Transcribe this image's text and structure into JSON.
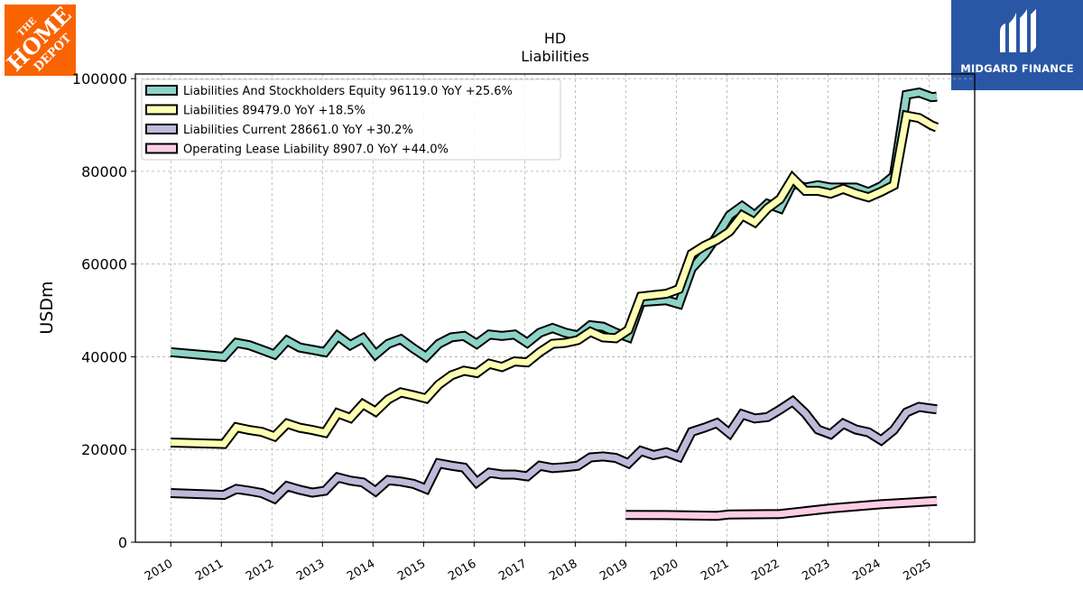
{
  "logos": {
    "left": {
      "text": "THE HOME DEPOT",
      "color": "#f96302"
    },
    "right": {
      "text": "MIDGARD FINANCE",
      "color": "#2a57a5"
    }
  },
  "chart_data": {
    "type": "line",
    "title": "HD",
    "subtitle": "Liabilities",
    "ylabel": "USDm",
    "xlabel": "",
    "ylim": [
      0,
      101000
    ],
    "xlim": [
      2009.3,
      2025.9
    ],
    "yticks": [
      0,
      20000,
      40000,
      60000,
      80000,
      100000
    ],
    "xticks": [
      2010,
      2011,
      2012,
      2013,
      2014,
      2015,
      2016,
      2017,
      2018,
      2019,
      2020,
      2021,
      2022,
      2023,
      2024,
      2025
    ],
    "grid": true,
    "legend_position": "top-left",
    "series": [
      {
        "name": "Liabilities And Stockholders Equity",
        "legend": "Liabilities And Stockholders Equity  96119.0 YoY +25.6%",
        "color": "#8dd3c7",
        "x": [
          2010.0,
          2011.05,
          2011.3,
          2011.55,
          2011.8,
          2012.05,
          2012.3,
          2012.55,
          2012.8,
          2013.05,
          2013.3,
          2013.55,
          2013.8,
          2014.05,
          2014.3,
          2014.55,
          2014.8,
          2015.05,
          2015.3,
          2015.55,
          2015.8,
          2016.05,
          2016.3,
          2016.55,
          2016.8,
          2017.05,
          2017.3,
          2017.55,
          2017.8,
          2018.05,
          2018.3,
          2018.55,
          2018.8,
          2019.05,
          2019.3,
          2019.55,
          2019.8,
          2020.05,
          2020.3,
          2020.55,
          2020.8,
          2021.05,
          2021.3,
          2021.55,
          2021.8,
          2022.05,
          2022.3,
          2022.55,
          2022.8,
          2023.05,
          2023.3,
          2023.55,
          2023.8,
          2024.05,
          2024.3,
          2024.55,
          2024.8,
          2025.05,
          2025.15
        ],
        "y": [
          41000,
          40000,
          43000,
          42500,
          41500,
          40500,
          43500,
          42000,
          41500,
          41000,
          44500,
          42500,
          44000,
          40500,
          42800,
          43800,
          41800,
          40000,
          42800,
          44200,
          44500,
          42800,
          44800,
          44500,
          44800,
          43000,
          45200,
          46200,
          45200,
          44600,
          46800,
          46500,
          45200,
          44200,
          51800,
          52000,
          52200,
          51400,
          59000,
          62000,
          66000,
          70500,
          72500,
          70500,
          73000,
          72000,
          77500,
          76500,
          77000,
          76500,
          76500,
          76500,
          75500,
          76800,
          79000,
          96500,
          97000,
          96000,
          96119
        ]
      },
      {
        "name": "Liabilities",
        "legend": "Liabilities  89479.0 YoY +18.5%",
        "color": "#ffffb3",
        "x": [
          2010.0,
          2011.05,
          2011.3,
          2011.55,
          2011.8,
          2012.05,
          2012.3,
          2012.55,
          2012.8,
          2013.05,
          2013.3,
          2013.55,
          2013.8,
          2014.05,
          2014.3,
          2014.55,
          2014.8,
          2015.05,
          2015.3,
          2015.55,
          2015.8,
          2016.05,
          2016.3,
          2016.55,
          2016.8,
          2017.05,
          2017.3,
          2017.55,
          2017.8,
          2018.05,
          2018.3,
          2018.55,
          2018.8,
          2019.05,
          2019.3,
          2019.55,
          2019.8,
          2020.05,
          2020.3,
          2020.55,
          2020.8,
          2021.05,
          2021.3,
          2021.55,
          2021.8,
          2022.05,
          2022.3,
          2022.55,
          2022.8,
          2023.05,
          2023.3,
          2023.55,
          2023.8,
          2024.05,
          2024.3,
          2024.55,
          2024.8,
          2025.05,
          2025.15
        ],
        "y": [
          21500,
          21200,
          24800,
          24200,
          23800,
          22800,
          25600,
          24700,
          24200,
          23600,
          27800,
          26800,
          29800,
          28200,
          30800,
          32300,
          31700,
          31000,
          34000,
          36000,
          37000,
          36500,
          38500,
          37800,
          39000,
          38800,
          41000,
          42800,
          43000,
          43600,
          45400,
          44200,
          44000,
          45800,
          53000,
          53300,
          53600,
          54600,
          62200,
          63900,
          65200,
          67000,
          70500,
          69000,
          72000,
          74000,
          78500,
          75800,
          75800,
          75200,
          76200,
          75200,
          74400,
          75600,
          77000,
          92000,
          91500,
          89900,
          89479
        ]
      },
      {
        "name": "Liabilities Current",
        "legend": "Liabilities Current  28661.0 YoY +30.2%",
        "color": "#bebada",
        "x": [
          2010.0,
          2011.05,
          2011.3,
          2011.55,
          2011.8,
          2012.05,
          2012.3,
          2012.55,
          2012.8,
          2013.05,
          2013.3,
          2013.55,
          2013.8,
          2014.05,
          2014.3,
          2014.55,
          2014.8,
          2015.05,
          2015.3,
          2015.55,
          2015.8,
          2016.05,
          2016.3,
          2016.55,
          2016.8,
          2017.05,
          2017.3,
          2017.55,
          2017.8,
          2018.05,
          2018.3,
          2018.55,
          2018.8,
          2019.05,
          2019.3,
          2019.55,
          2019.8,
          2020.05,
          2020.3,
          2020.55,
          2020.8,
          2021.05,
          2021.3,
          2021.55,
          2021.8,
          2022.05,
          2022.3,
          2022.55,
          2022.8,
          2023.05,
          2023.3,
          2023.55,
          2023.8,
          2024.05,
          2024.3,
          2024.55,
          2024.8,
          2025.05,
          2025.15
        ],
        "y": [
          10600,
          10200,
          11500,
          11100,
          10600,
          9400,
          12100,
          11300,
          10700,
          11100,
          14000,
          13300,
          12900,
          11000,
          13400,
          13100,
          12600,
          11500,
          17000,
          16500,
          16100,
          12900,
          15000,
          14600,
          14600,
          14200,
          16500,
          16000,
          16200,
          16500,
          18300,
          18500,
          18200,
          17000,
          19700,
          18800,
          19400,
          18400,
          23800,
          24700,
          25700,
          23500,
          27600,
          26700,
          27000,
          28600,
          30400,
          27800,
          24300,
          23300,
          25600,
          24300,
          23700,
          22000,
          24200,
          28000,
          29200,
          28800,
          28661
        ]
      },
      {
        "name": "Operating Lease Liability",
        "legend": "Operating Lease Liability  8907.0 YoY +44.0%",
        "color": "#fccde5",
        "x": [
          2019.0,
          2019.8,
          2020.8,
          2021.05,
          2022.05,
          2023.05,
          2024.05,
          2025.15
        ],
        "y": [
          5900,
          5850,
          5700,
          6000,
          6100,
          7300,
          8200,
          8907
        ]
      }
    ]
  }
}
